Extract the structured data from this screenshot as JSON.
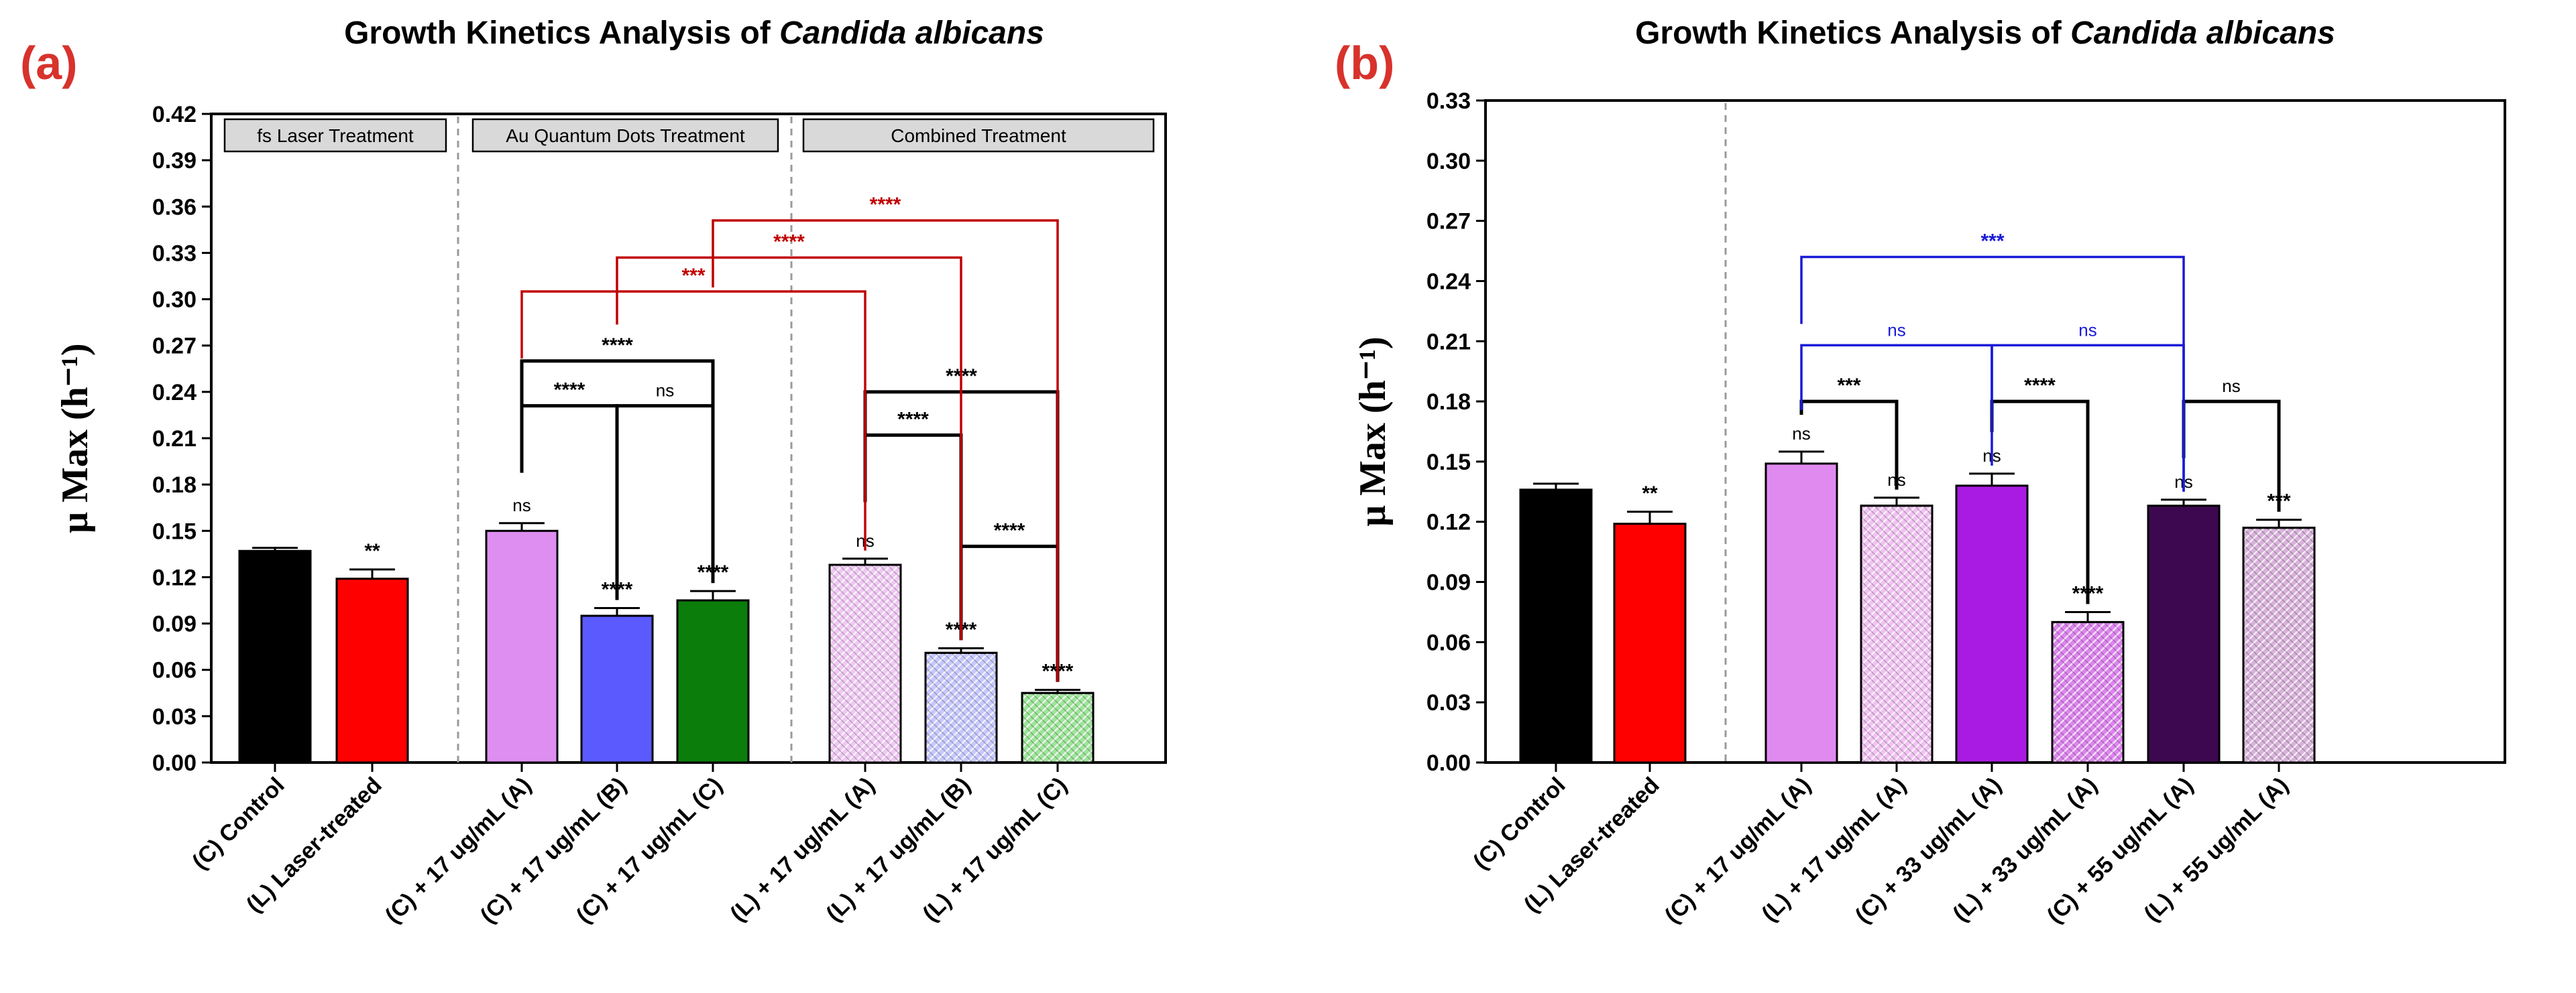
{
  "panels": [
    {
      "label": "(a)",
      "title_prefix": "Growth Kinetics Analysis of ",
      "title_italic": "Candida albicans"
    },
    {
      "label": "(b)",
      "title_prefix": "Growth Kinetics Analysis of ",
      "title_italic": "Candida albicans"
    }
  ],
  "chart_data": [
    {
      "type": "bar",
      "title": "Growth Kinetics Analysis of Candida albicans",
      "ylabel": "μ Max (h⁻¹)",
      "ylim": [
        0,
        0.42
      ],
      "yticks": [
        "0.00",
        "0.03",
        "0.06",
        "0.09",
        "0.12",
        "0.15",
        "0.18",
        "0.21",
        "0.24",
        "0.27",
        "0.30",
        "0.33",
        "0.36",
        "0.39",
        "0.42"
      ],
      "grid": false,
      "sections": [
        "fs Laser Treatment",
        "Au Quantum Dots Treatment",
        "Combined Treatment"
      ],
      "categories": [
        "(C) Control",
        "(L) Laser-treated",
        "(C) + 17 ug/mL (A)",
        "(C) + 17 ug/mL (B)",
        "(C) + 17 ug/mL (C)",
        "(L) + 17 ug/mL (A)",
        "(L) + 17 ug/mL (B)",
        "(L) + 17 ug/mL (C)"
      ],
      "values": [
        0.137,
        0.119,
        0.15,
        0.095,
        0.105,
        0.128,
        0.071,
        0.045
      ],
      "errors": [
        0.002,
        0.006,
        0.005,
        0.005,
        0.006,
        0.004,
        0.003,
        0.002
      ],
      "bar_colors": [
        "#000000",
        "#ff0000",
        "#dd8ef0",
        "#5a5aff",
        "#0b7d0b",
        "#f0c8f4",
        "#c6c8ff",
        "#9ee49a"
      ],
      "bar_patterns": [
        "solid",
        "solid",
        "solid",
        "solid",
        "solid",
        "hatch",
        "hatch",
        "hatch"
      ],
      "bar_labels": [
        "",
        "**",
        "ns",
        "****",
        "****",
        "ns",
        "****",
        "****"
      ],
      "comparisons": [
        {
          "from": 2,
          "to": 3,
          "label": "****",
          "y": 0.231,
          "color": "#000000"
        },
        {
          "from": 3,
          "to": 4,
          "label": "ns",
          "y": 0.231,
          "color": "#000000"
        },
        {
          "from": 2,
          "to": 4,
          "label": "****",
          "y": 0.26,
          "color": "#000000"
        },
        {
          "from": 5,
          "to": 6,
          "label": "****",
          "y": 0.212,
          "color": "#000000"
        },
        {
          "from": 6,
          "to": 7,
          "label": "****",
          "y": 0.14,
          "color": "#000000"
        },
        {
          "from": 5,
          "to": 7,
          "label": "****",
          "y": 0.24,
          "color": "#000000"
        },
        {
          "from": 2,
          "to": 5,
          "label": "***",
          "y": 0.305,
          "color": "#c00000"
        },
        {
          "from": 3,
          "to": 6,
          "label": "****",
          "y": 0.327,
          "color": "#c00000"
        },
        {
          "from": 4,
          "to": 7,
          "label": "****",
          "y": 0.351,
          "color": "#c00000"
        }
      ]
    },
    {
      "type": "bar",
      "title": "Growth Kinetics Analysis of Candida albicans",
      "ylabel": "μ Max (h⁻¹)",
      "ylim": [
        0,
        0.33
      ],
      "yticks": [
        "0.00",
        "0.03",
        "0.06",
        "0.09",
        "0.12",
        "0.15",
        "0.18",
        "0.21",
        "0.24",
        "0.27",
        "0.30",
        "0.33"
      ],
      "grid": false,
      "categories": [
        "(C) Control",
        "(L) Laser-treated",
        "(C) + 17 ug/mL (A)",
        "(L) + 17 ug/mL (A)",
        "(C) + 33 ug/mL (A)",
        "(L) + 33 ug/mL (A)",
        "(C) + 55 ug/mL (A)",
        "(L) + 55 ug/mL (A)"
      ],
      "values": [
        0.136,
        0.119,
        0.149,
        0.128,
        0.138,
        0.07,
        0.128,
        0.117
      ],
      "errors": [
        0.003,
        0.006,
        0.006,
        0.004,
        0.006,
        0.005,
        0.003,
        0.004
      ],
      "bar_colors": [
        "#000000",
        "#ff0000",
        "#e08af0",
        "#f2c2f4",
        "#a91be2",
        "#dd84f0",
        "#3d0850",
        "#d9b2dc"
      ],
      "bar_patterns": [
        "solid",
        "solid",
        "solid",
        "hatch",
        "solid",
        "hatch",
        "solid",
        "hatch"
      ],
      "bar_labels": [
        "",
        "**",
        "ns",
        "ns",
        "ns",
        "****",
        "ns",
        "***"
      ],
      "comparisons": [
        {
          "from": 2,
          "to": 3,
          "label": "***",
          "y": 0.18,
          "color": "#000000"
        },
        {
          "from": 4,
          "to": 5,
          "label": "****",
          "y": 0.18,
          "color": "#000000"
        },
        {
          "from": 6,
          "to": 7,
          "label": "ns",
          "y": 0.18,
          "color": "#000000"
        },
        {
          "from": 2,
          "to": 4,
          "label": "ns",
          "y": 0.208,
          "color": "#1a1ad8"
        },
        {
          "from": 4,
          "to": 6,
          "label": "ns",
          "y": 0.208,
          "color": "#1a1ad8"
        },
        {
          "from": 2,
          "to": 6,
          "label": "***",
          "y": 0.252,
          "color": "#1a1ad8"
        }
      ]
    }
  ]
}
